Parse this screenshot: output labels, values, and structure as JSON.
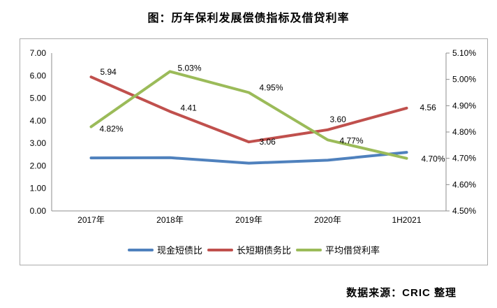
{
  "page": {
    "title": "图：历年保利发展偿债指标及借贷利率",
    "source": "数据来源：CRIC 整理"
  },
  "chart_data": {
    "type": "line",
    "title": "图：历年保利发展偿债指标及借贷利率",
    "categories": [
      "2017年",
      "2018年",
      "2019年",
      "2020年",
      "1H2021"
    ],
    "series": [
      {
        "name": "现金短债比",
        "axis": "left",
        "color": "#4f81bd",
        "values": [
          2.35,
          2.36,
          2.12,
          2.25,
          2.6
        ],
        "point_labels": [
          "",
          "",
          "",
          "",
          ""
        ]
      },
      {
        "name": "长短期债务比",
        "axis": "left",
        "color": "#c0504d",
        "values": [
          5.94,
          4.41,
          3.06,
          3.6,
          4.56
        ],
        "point_labels": [
          "5.94",
          "4.41",
          "3.06",
          "3.60",
          "4.56"
        ]
      },
      {
        "name": "平均借贷利率",
        "axis": "right",
        "color": "#9bbb59",
        "values": [
          4.82,
          5.03,
          4.95,
          4.77,
          4.7
        ],
        "point_labels": [
          "4.82%",
          "5.03%",
          "4.95%",
          "4.77%",
          "4.70%"
        ]
      }
    ],
    "left_axis": {
      "min": 0,
      "max": 7,
      "tick_labels": [
        "0.00",
        "1.00",
        "2.00",
        "3.00",
        "4.00",
        "5.00",
        "6.00",
        "7.00"
      ]
    },
    "right_axis": {
      "min": 4.5,
      "max": 5.1,
      "tick_labels": [
        "4.50%",
        "4.60%",
        "4.70%",
        "4.80%",
        "4.90%",
        "5.00%",
        "5.10%"
      ]
    },
    "legend_position": "bottom",
    "grid": false,
    "source_note": "数据来源：CRIC 整理"
  },
  "colors": {
    "axis_line": "#8c8c8c",
    "frame_border": "#ababab",
    "label_text": "#000000"
  }
}
